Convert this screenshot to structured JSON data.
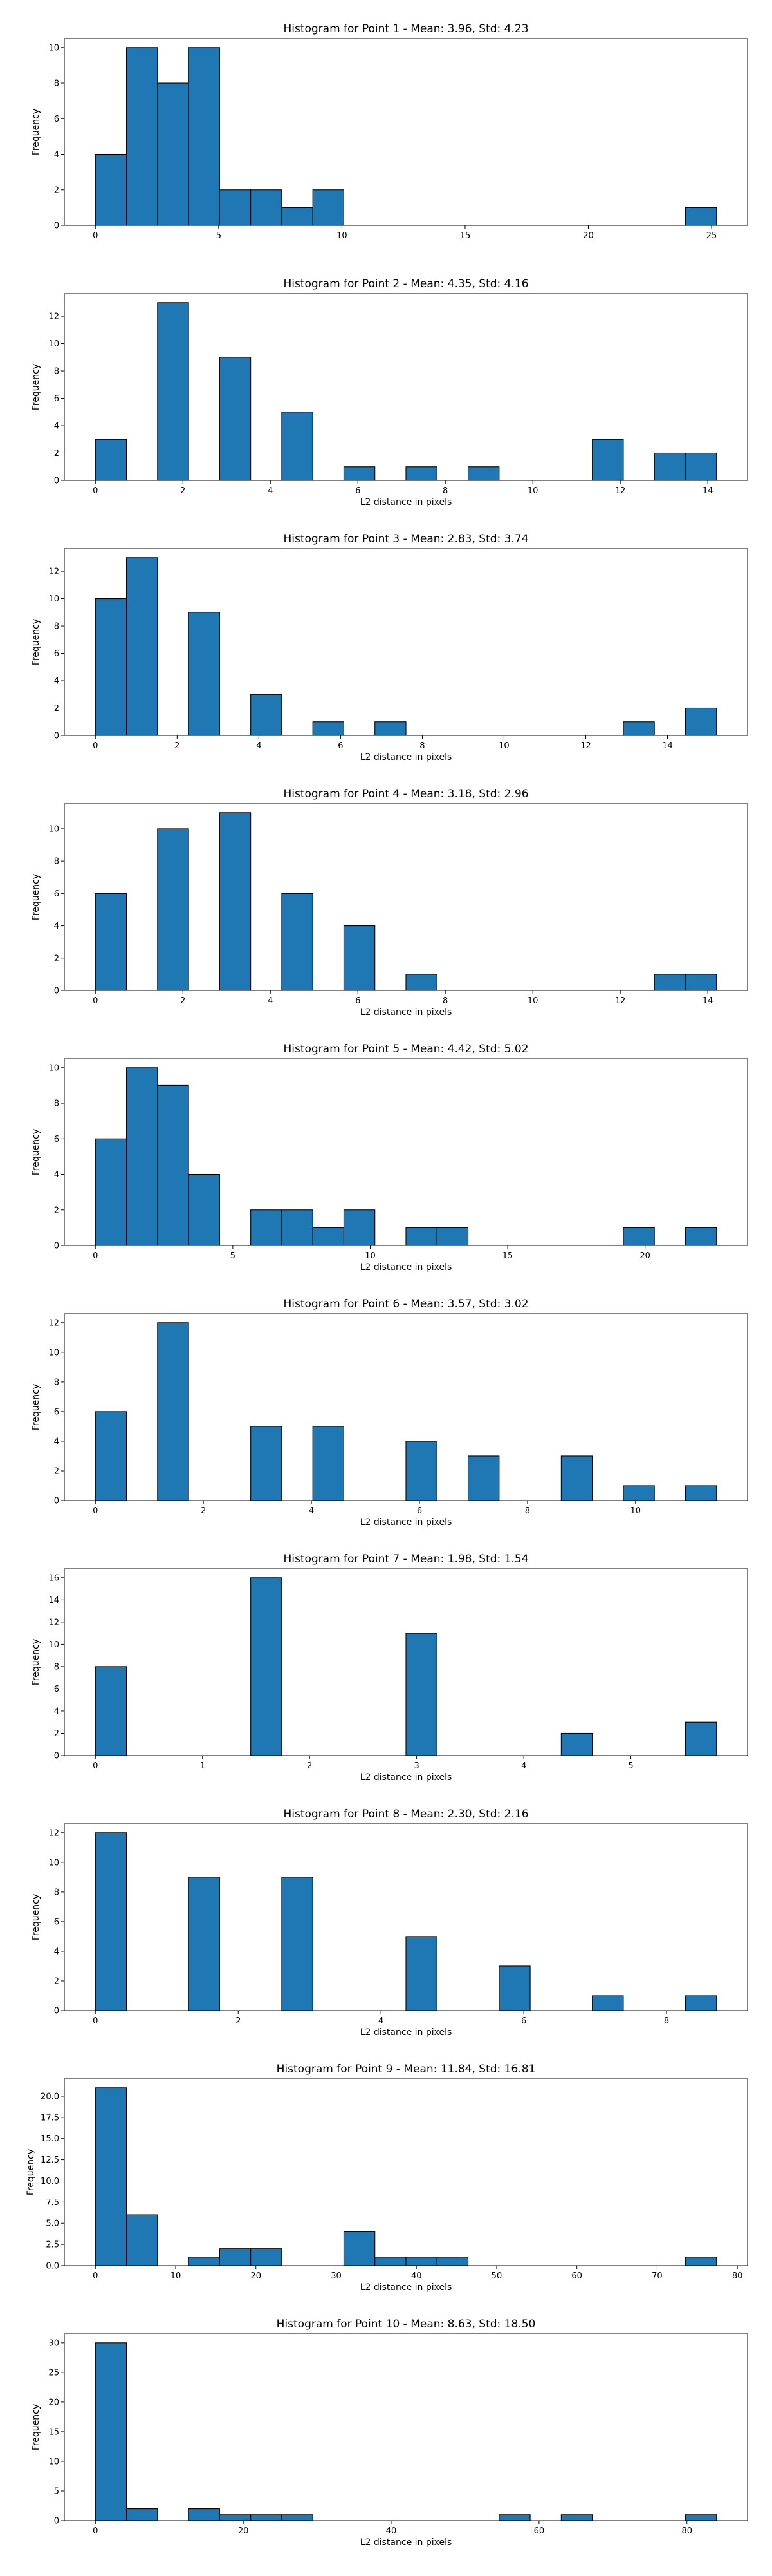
{
  "chart_data": [
    {
      "type": "bar",
      "title": "Histogram for Point 1 - Mean: 3.96, Std: 4.23",
      "xlabel": "",
      "ylabel": "Frequency",
      "bin_start": 0,
      "bin_width": 1.26,
      "counts": [
        4,
        10,
        8,
        10,
        2,
        2,
        1,
        2,
        0,
        0,
        0,
        0,
        0,
        0,
        0,
        0,
        0,
        0,
        0,
        1
      ],
      "xlim": [
        -1.26,
        26.46
      ],
      "ylim": [
        0,
        10.5
      ],
      "xticks": [
        0,
        5,
        10,
        15,
        20,
        25
      ],
      "yticks": [
        0,
        2,
        4,
        6,
        8,
        10
      ],
      "bar_color": "#1f77b4"
    },
    {
      "type": "bar",
      "title": "Histogram for Point 2 - Mean: 4.35, Std: 4.16",
      "xlabel": "L2 distance in pixels",
      "ylabel": "Frequency",
      "bin_start": 0,
      "bin_width": 0.71,
      "counts": [
        3,
        0,
        13,
        0,
        9,
        0,
        5,
        0,
        1,
        0,
        1,
        0,
        1,
        0,
        0,
        0,
        3,
        0,
        2,
        2
      ],
      "xlim": [
        -0.71,
        14.91
      ],
      "ylim": [
        0,
        13.65
      ],
      "xticks": [
        0,
        2,
        4,
        6,
        8,
        10,
        12,
        14
      ],
      "yticks": [
        0,
        2,
        4,
        6,
        8,
        10,
        12
      ],
      "bar_color": "#1f77b4"
    },
    {
      "type": "bar",
      "title": "Histogram for Point 3 - Mean: 2.83, Std: 3.74",
      "xlabel": "L2 distance in pixels",
      "ylabel": "Frequency",
      "bin_start": 0,
      "bin_width": 0.76,
      "counts": [
        10,
        13,
        0,
        9,
        0,
        3,
        0,
        1,
        0,
        1,
        0,
        0,
        0,
        0,
        0,
        0,
        0,
        1,
        0,
        2
      ],
      "xlim": [
        -0.76,
        15.96
      ],
      "ylim": [
        0,
        13.65
      ],
      "xticks": [
        0,
        2,
        4,
        6,
        8,
        10,
        12,
        14
      ],
      "yticks": [
        0,
        2,
        4,
        6,
        8,
        10,
        12
      ],
      "bar_color": "#1f77b4"
    },
    {
      "type": "bar",
      "title": "Histogram for Point 4 - Mean: 3.18, Std: 2.96",
      "xlabel": "L2 distance in pixels",
      "ylabel": "Frequency",
      "bin_start": 0,
      "bin_width": 0.71,
      "counts": [
        6,
        0,
        10,
        0,
        11,
        0,
        6,
        0,
        4,
        0,
        1,
        0,
        0,
        0,
        0,
        0,
        0,
        0,
        1,
        1
      ],
      "xlim": [
        -0.71,
        14.91
      ],
      "ylim": [
        0,
        11.55
      ],
      "xticks": [
        0,
        2,
        4,
        6,
        8,
        10,
        12,
        14
      ],
      "yticks": [
        0,
        2,
        4,
        6,
        8,
        10
      ],
      "bar_color": "#1f77b4"
    },
    {
      "type": "bar",
      "title": "Histogram for Point 5 - Mean: 4.42, Std: 5.02",
      "xlabel": "L2 distance in pixels",
      "ylabel": "Frequency",
      "bin_start": 0,
      "bin_width": 1.13,
      "counts": [
        6,
        10,
        9,
        4,
        0,
        2,
        2,
        1,
        2,
        0,
        1,
        1,
        0,
        0,
        0,
        0,
        0,
        1,
        0,
        1
      ],
      "xlim": [
        -1.13,
        23.73
      ],
      "ylim": [
        0,
        10.5
      ],
      "xticks": [
        0,
        5,
        10,
        15,
        20
      ],
      "yticks": [
        0,
        2,
        4,
        6,
        8,
        10
      ],
      "bar_color": "#1f77b4"
    },
    {
      "type": "bar",
      "title": "Histogram for Point 6 - Mean: 3.57, Std: 3.02",
      "xlabel": "L2 distance in pixels",
      "ylabel": "Frequency",
      "bin_start": 0,
      "bin_width": 0.575,
      "counts": [
        6,
        0,
        12,
        0,
        0,
        5,
        0,
        5,
        0,
        0,
        4,
        0,
        3,
        0,
        0,
        3,
        0,
        1,
        0,
        1
      ],
      "xlim": [
        -0.575,
        12.075
      ],
      "ylim": [
        0,
        12.6
      ],
      "xticks": [
        0,
        2,
        4,
        6,
        8,
        10
      ],
      "yticks": [
        0,
        2,
        4,
        6,
        8,
        10,
        12
      ],
      "bar_color": "#1f77b4"
    },
    {
      "type": "bar",
      "title": "Histogram for Point 7 - Mean: 1.98, Std: 1.54",
      "xlabel": "L2 distance in pixels",
      "ylabel": "Frequency",
      "bin_start": 0,
      "bin_width": 0.29,
      "counts": [
        8,
        0,
        0,
        0,
        0,
        16,
        0,
        0,
        0,
        0,
        11,
        0,
        0,
        0,
        0,
        2,
        0,
        0,
        0,
        3
      ],
      "xlim": [
        -0.29,
        6.09
      ],
      "ylim": [
        0,
        16.8
      ],
      "xticks": [
        0,
        1,
        2,
        3,
        4,
        5
      ],
      "yticks": [
        0,
        2,
        4,
        6,
        8,
        10,
        12,
        14,
        16
      ],
      "bar_color": "#1f77b4"
    },
    {
      "type": "bar",
      "title": "Histogram for Point 8 - Mean: 2.30, Std: 2.16",
      "xlabel": "L2 distance in pixels",
      "ylabel": "Frequency",
      "bin_start": 0,
      "bin_width": 0.435,
      "counts": [
        12,
        0,
        0,
        9,
        0,
        0,
        9,
        0,
        0,
        0,
        5,
        0,
        0,
        3,
        0,
        0,
        1,
        0,
        0,
        1
      ],
      "xlim": [
        -0.435,
        9.135
      ],
      "ylim": [
        0,
        12.6
      ],
      "xticks": [
        0,
        2,
        4,
        6,
        8
      ],
      "yticks": [
        0,
        2,
        4,
        6,
        8,
        10,
        12
      ],
      "bar_color": "#1f77b4"
    },
    {
      "type": "bar",
      "title": "Histogram for Point 9 - Mean: 11.84, Std: 16.81",
      "xlabel": "L2 distance in pixels",
      "ylabel": "Frequency",
      "bin_start": 0,
      "bin_width": 3.87,
      "counts": [
        21,
        6,
        0,
        1,
        2,
        2,
        0,
        0,
        4,
        1,
        1,
        1,
        0,
        0,
        0,
        0,
        0,
        0,
        0,
        1
      ],
      "xlim": [
        -3.87,
        81.27
      ],
      "ylim": [
        0,
        22.05
      ],
      "xticks": [
        0,
        10,
        20,
        30,
        40,
        50,
        60,
        70,
        80
      ],
      "yticks": [
        0,
        2.5,
        5.0,
        7.5,
        10.0,
        12.5,
        15.0,
        17.5,
        20.0
      ],
      "ytick_decimals": 1,
      "bar_color": "#1f77b4"
    },
    {
      "type": "bar",
      "title": "Histogram for Point 10 - Mean: 8.63, Std: 18.50",
      "xlabel": "L2 distance in pixels",
      "ylabel": "Frequency",
      "bin_start": 0,
      "bin_width": 4.2,
      "counts": [
        30,
        2,
        0,
        2,
        1,
        1,
        1,
        0,
        0,
        0,
        0,
        0,
        0,
        1,
        0,
        1,
        0,
        0,
        0,
        1
      ],
      "xlim": [
        -4.2,
        88.2
      ],
      "ylim": [
        0,
        31.5
      ],
      "xticks": [
        0,
        20,
        40,
        60,
        80
      ],
      "yticks": [
        0,
        5,
        10,
        15,
        20,
        25,
        30
      ],
      "bar_color": "#1f77b4"
    }
  ]
}
